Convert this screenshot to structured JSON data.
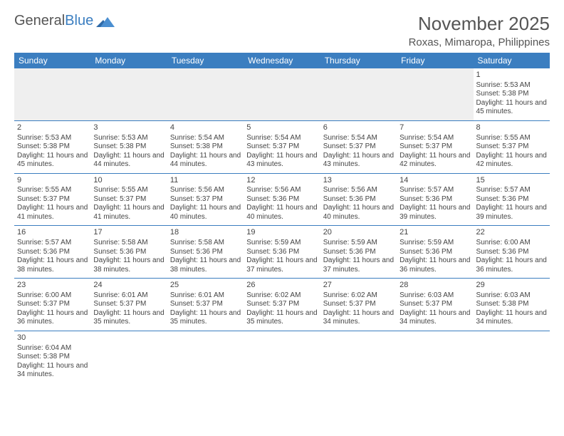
{
  "logo": {
    "text1": "General",
    "text2": "Blue"
  },
  "title": "November 2025",
  "location": "Roxas, Mimaropa, Philippines",
  "colors": {
    "header_bg": "#3b7ec0",
    "header_fg": "#ffffff",
    "border": "#3b7ec0",
    "empty_bg": "#efefef"
  },
  "day_headers": [
    "Sunday",
    "Monday",
    "Tuesday",
    "Wednesday",
    "Thursday",
    "Friday",
    "Saturday"
  ],
  "weeks": [
    [
      null,
      null,
      null,
      null,
      null,
      null,
      {
        "n": "1",
        "sr": "Sunrise: 5:53 AM",
        "ss": "Sunset: 5:38 PM",
        "dl": "Daylight: 11 hours and 45 minutes."
      }
    ],
    [
      {
        "n": "2",
        "sr": "Sunrise: 5:53 AM",
        "ss": "Sunset: 5:38 PM",
        "dl": "Daylight: 11 hours and 45 minutes."
      },
      {
        "n": "3",
        "sr": "Sunrise: 5:53 AM",
        "ss": "Sunset: 5:38 PM",
        "dl": "Daylight: 11 hours and 44 minutes."
      },
      {
        "n": "4",
        "sr": "Sunrise: 5:54 AM",
        "ss": "Sunset: 5:38 PM",
        "dl": "Daylight: 11 hours and 44 minutes."
      },
      {
        "n": "5",
        "sr": "Sunrise: 5:54 AM",
        "ss": "Sunset: 5:37 PM",
        "dl": "Daylight: 11 hours and 43 minutes."
      },
      {
        "n": "6",
        "sr": "Sunrise: 5:54 AM",
        "ss": "Sunset: 5:37 PM",
        "dl": "Daylight: 11 hours and 43 minutes."
      },
      {
        "n": "7",
        "sr": "Sunrise: 5:54 AM",
        "ss": "Sunset: 5:37 PM",
        "dl": "Daylight: 11 hours and 42 minutes."
      },
      {
        "n": "8",
        "sr": "Sunrise: 5:55 AM",
        "ss": "Sunset: 5:37 PM",
        "dl": "Daylight: 11 hours and 42 minutes."
      }
    ],
    [
      {
        "n": "9",
        "sr": "Sunrise: 5:55 AM",
        "ss": "Sunset: 5:37 PM",
        "dl": "Daylight: 11 hours and 41 minutes."
      },
      {
        "n": "10",
        "sr": "Sunrise: 5:55 AM",
        "ss": "Sunset: 5:37 PM",
        "dl": "Daylight: 11 hours and 41 minutes."
      },
      {
        "n": "11",
        "sr": "Sunrise: 5:56 AM",
        "ss": "Sunset: 5:37 PM",
        "dl": "Daylight: 11 hours and 40 minutes."
      },
      {
        "n": "12",
        "sr": "Sunrise: 5:56 AM",
        "ss": "Sunset: 5:36 PM",
        "dl": "Daylight: 11 hours and 40 minutes."
      },
      {
        "n": "13",
        "sr": "Sunrise: 5:56 AM",
        "ss": "Sunset: 5:36 PM",
        "dl": "Daylight: 11 hours and 40 minutes."
      },
      {
        "n": "14",
        "sr": "Sunrise: 5:57 AM",
        "ss": "Sunset: 5:36 PM",
        "dl": "Daylight: 11 hours and 39 minutes."
      },
      {
        "n": "15",
        "sr": "Sunrise: 5:57 AM",
        "ss": "Sunset: 5:36 PM",
        "dl": "Daylight: 11 hours and 39 minutes."
      }
    ],
    [
      {
        "n": "16",
        "sr": "Sunrise: 5:57 AM",
        "ss": "Sunset: 5:36 PM",
        "dl": "Daylight: 11 hours and 38 minutes."
      },
      {
        "n": "17",
        "sr": "Sunrise: 5:58 AM",
        "ss": "Sunset: 5:36 PM",
        "dl": "Daylight: 11 hours and 38 minutes."
      },
      {
        "n": "18",
        "sr": "Sunrise: 5:58 AM",
        "ss": "Sunset: 5:36 PM",
        "dl": "Daylight: 11 hours and 38 minutes."
      },
      {
        "n": "19",
        "sr": "Sunrise: 5:59 AM",
        "ss": "Sunset: 5:36 PM",
        "dl": "Daylight: 11 hours and 37 minutes."
      },
      {
        "n": "20",
        "sr": "Sunrise: 5:59 AM",
        "ss": "Sunset: 5:36 PM",
        "dl": "Daylight: 11 hours and 37 minutes."
      },
      {
        "n": "21",
        "sr": "Sunrise: 5:59 AM",
        "ss": "Sunset: 5:36 PM",
        "dl": "Daylight: 11 hours and 36 minutes."
      },
      {
        "n": "22",
        "sr": "Sunrise: 6:00 AM",
        "ss": "Sunset: 5:36 PM",
        "dl": "Daylight: 11 hours and 36 minutes."
      }
    ],
    [
      {
        "n": "23",
        "sr": "Sunrise: 6:00 AM",
        "ss": "Sunset: 5:37 PM",
        "dl": "Daylight: 11 hours and 36 minutes."
      },
      {
        "n": "24",
        "sr": "Sunrise: 6:01 AM",
        "ss": "Sunset: 5:37 PM",
        "dl": "Daylight: 11 hours and 35 minutes."
      },
      {
        "n": "25",
        "sr": "Sunrise: 6:01 AM",
        "ss": "Sunset: 5:37 PM",
        "dl": "Daylight: 11 hours and 35 minutes."
      },
      {
        "n": "26",
        "sr": "Sunrise: 6:02 AM",
        "ss": "Sunset: 5:37 PM",
        "dl": "Daylight: 11 hours and 35 minutes."
      },
      {
        "n": "27",
        "sr": "Sunrise: 6:02 AM",
        "ss": "Sunset: 5:37 PM",
        "dl": "Daylight: 11 hours and 34 minutes."
      },
      {
        "n": "28",
        "sr": "Sunrise: 6:03 AM",
        "ss": "Sunset: 5:37 PM",
        "dl": "Daylight: 11 hours and 34 minutes."
      },
      {
        "n": "29",
        "sr": "Sunrise: 6:03 AM",
        "ss": "Sunset: 5:38 PM",
        "dl": "Daylight: 11 hours and 34 minutes."
      }
    ],
    [
      {
        "n": "30",
        "sr": "Sunrise: 6:04 AM",
        "ss": "Sunset: 5:38 PM",
        "dl": "Daylight: 11 hours and 34 minutes."
      },
      null,
      null,
      null,
      null,
      null,
      null
    ]
  ]
}
